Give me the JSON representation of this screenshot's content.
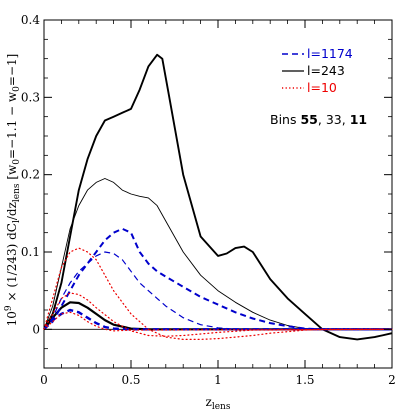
{
  "chart_data": {
    "type": "line",
    "xlabel_main": "z",
    "xlabel_sub": "lens",
    "ylabel": "10⁹ × (1/243)  dC_l/dz_lens [w₀=−1.1 − w₀=−1]",
    "ylabel_parts": {
      "lead": "10",
      "lead_sup": "9",
      "mid": " × (1/243)  dC",
      "sub_l": "l",
      "dz": "/dz",
      "sub_lens": "lens",
      "tail": " [w",
      "w0a": "0",
      "eq1": "=−1.1 − w",
      "w0b": "0",
      "eq2": "=−1]"
    },
    "xlim": [
      0,
      2
    ],
    "ylim": [
      -0.05,
      0.4
    ],
    "xticks": [
      0,
      0.5,
      1,
      1.5,
      2
    ],
    "xtick_labels": [
      "0",
      "0.5",
      "1",
      "1.5",
      "2"
    ],
    "yticks": [
      0,
      0.1,
      0.2,
      0.3,
      0.4
    ],
    "ytick_labels": [
      "0",
      "0.1",
      "0.2",
      "0.3",
      "0.4"
    ],
    "legend": [
      {
        "label": "l=1174",
        "color": "#0000cc",
        "style": "dashed"
      },
      {
        "label": "l=243",
        "color": "#000000",
        "style": "solid"
      },
      {
        "label": "l=10",
        "color": "#ee0000",
        "style": "dotted"
      }
    ],
    "legend_position": "top-right",
    "annotation": {
      "prefix": "Bins ",
      "b1": "55",
      "sep1": ", ",
      "b2": "33",
      "sep2": ", ",
      "b3": "11"
    },
    "series": [
      {
        "name": "l=243",
        "bin": "55",
        "color": "#000000",
        "style": "solid",
        "width": 1.9,
        "x": [
          0,
          0.05,
          0.1,
          0.15,
          0.2,
          0.25,
          0.3,
          0.35,
          0.4,
          0.45,
          0.5,
          0.55,
          0.6,
          0.65,
          0.68,
          0.72,
          0.8,
          0.9,
          1.0,
          1.05,
          1.1,
          1.15,
          1.2,
          1.3,
          1.4,
          1.5,
          1.6,
          1.7,
          1.8,
          1.9,
          2.0
        ],
        "y": [
          0,
          0.02,
          0.06,
          0.12,
          0.18,
          0.22,
          0.25,
          0.27,
          0.275,
          0.28,
          0.285,
          0.31,
          0.34,
          0.355,
          0.35,
          0.3,
          0.2,
          0.12,
          0.095,
          0.098,
          0.105,
          0.107,
          0.1,
          0.065,
          0.04,
          0.02,
          0.0,
          -0.01,
          -0.013,
          -0.01,
          -0.005
        ]
      },
      {
        "name": "l=243",
        "bin": "33",
        "color": "#000000",
        "style": "solid",
        "width": 0.9,
        "x": [
          0,
          0.05,
          0.1,
          0.15,
          0.2,
          0.25,
          0.3,
          0.35,
          0.4,
          0.45,
          0.5,
          0.55,
          0.6,
          0.65,
          0.7,
          0.8,
          0.9,
          1.0,
          1.1,
          1.2,
          1.3,
          1.4,
          1.5,
          1.55,
          1.6,
          1.7,
          2.0
        ],
        "y": [
          0,
          0.03,
          0.08,
          0.13,
          0.16,
          0.18,
          0.19,
          0.195,
          0.19,
          0.18,
          0.175,
          0.172,
          0.17,
          0.16,
          0.14,
          0.1,
          0.07,
          0.05,
          0.035,
          0.022,
          0.012,
          0.005,
          0.001,
          0.0,
          0.0,
          0.0,
          0.0
        ]
      },
      {
        "name": "l=243",
        "bin": "11",
        "color": "#000000",
        "style": "solid",
        "width": 2.2,
        "x": [
          0,
          0.05,
          0.1,
          0.15,
          0.2,
          0.25,
          0.3,
          0.35,
          0.4,
          0.5,
          0.6,
          0.7,
          2.0
        ],
        "y": [
          0,
          0.015,
          0.028,
          0.035,
          0.034,
          0.028,
          0.02,
          0.012,
          0.006,
          0.001,
          0.0,
          0.0,
          0.0
        ]
      },
      {
        "name": "l=1174",
        "bin": "55",
        "color": "#0000cc",
        "style": "dashed",
        "width": 2.0,
        "x": [
          0,
          0.05,
          0.1,
          0.15,
          0.2,
          0.25,
          0.3,
          0.35,
          0.4,
          0.45,
          0.5,
          0.55,
          0.6,
          0.65,
          0.7,
          0.8,
          0.9,
          1.0,
          1.1,
          1.2,
          1.3,
          1.4,
          1.5,
          1.6,
          2.0
        ],
        "y": [
          0,
          0.01,
          0.03,
          0.05,
          0.07,
          0.085,
          0.1,
          0.115,
          0.125,
          0.13,
          0.125,
          0.1,
          0.085,
          0.075,
          0.068,
          0.055,
          0.042,
          0.032,
          0.022,
          0.014,
          0.008,
          0.004,
          0.001,
          0.0,
          0.0
        ]
      },
      {
        "name": "l=1174",
        "bin": "33",
        "color": "#0000cc",
        "style": "dashed",
        "width": 1.2,
        "x": [
          0,
          0.05,
          0.1,
          0.15,
          0.2,
          0.25,
          0.3,
          0.35,
          0.4,
          0.45,
          0.5,
          0.55,
          0.6,
          0.65,
          0.7,
          0.8,
          0.9,
          1.0,
          1.1,
          1.2,
          2.0
        ],
        "y": [
          0,
          0.015,
          0.04,
          0.06,
          0.075,
          0.085,
          0.095,
          0.1,
          0.098,
          0.09,
          0.075,
          0.06,
          0.05,
          0.04,
          0.03,
          0.015,
          0.006,
          0.002,
          0.0,
          0.0,
          0.0
        ]
      },
      {
        "name": "l=1174",
        "bin": "11",
        "color": "#0000cc",
        "style": "dashed",
        "width": 2.4,
        "x": [
          0,
          0.05,
          0.1,
          0.15,
          0.2,
          0.25,
          0.3,
          0.35,
          0.4,
          0.5,
          0.6,
          2.0
        ],
        "y": [
          0,
          0.012,
          0.02,
          0.025,
          0.022,
          0.015,
          0.008,
          0.003,
          0.001,
          0.0,
          0.0,
          0.0
        ]
      },
      {
        "name": "l=10",
        "bin": "55",
        "color": "#ee0000",
        "style": "dotted",
        "width": 1.2,
        "x": [
          0,
          0.05,
          0.1,
          0.15,
          0.2,
          0.25,
          0.3,
          0.35,
          0.4,
          0.5,
          0.6,
          0.7,
          0.8,
          0.9,
          1.0,
          1.1,
          1.2,
          1.3,
          1.4,
          1.5,
          1.6,
          1.7,
          2.0
        ],
        "y": [
          0,
          0.04,
          0.08,
          0.1,
          0.105,
          0.1,
          0.09,
          0.07,
          0.05,
          0.02,
          0.0,
          -0.01,
          -0.013,
          -0.013,
          -0.012,
          -0.01,
          -0.008,
          -0.005,
          -0.003,
          -0.001,
          0.0,
          0.0,
          0.0
        ]
      },
      {
        "name": "l=10",
        "bin": "33",
        "color": "#ee0000",
        "style": "dotted",
        "width": 1.2,
        "x": [
          0,
          0.05,
          0.1,
          0.15,
          0.2,
          0.25,
          0.3,
          0.4,
          0.5,
          0.6,
          0.7,
          0.8,
          0.9,
          1.0,
          1.2,
          2.0
        ],
        "y": [
          0,
          0.02,
          0.04,
          0.047,
          0.045,
          0.038,
          0.028,
          0.01,
          -0.002,
          -0.008,
          -0.009,
          -0.008,
          -0.006,
          -0.004,
          -0.001,
          0.0
        ]
      },
      {
        "name": "l=10",
        "bin": "11",
        "color": "#ee0000",
        "style": "dotted",
        "width": 1.2,
        "x": [
          0,
          0.05,
          0.1,
          0.15,
          0.2,
          0.25,
          0.3,
          0.35,
          0.4,
          0.5,
          2.0
        ],
        "y": [
          0,
          0.01,
          0.02,
          0.022,
          0.018,
          0.01,
          0.004,
          0.0,
          -0.002,
          -0.001,
          0.0
        ]
      }
    ]
  }
}
